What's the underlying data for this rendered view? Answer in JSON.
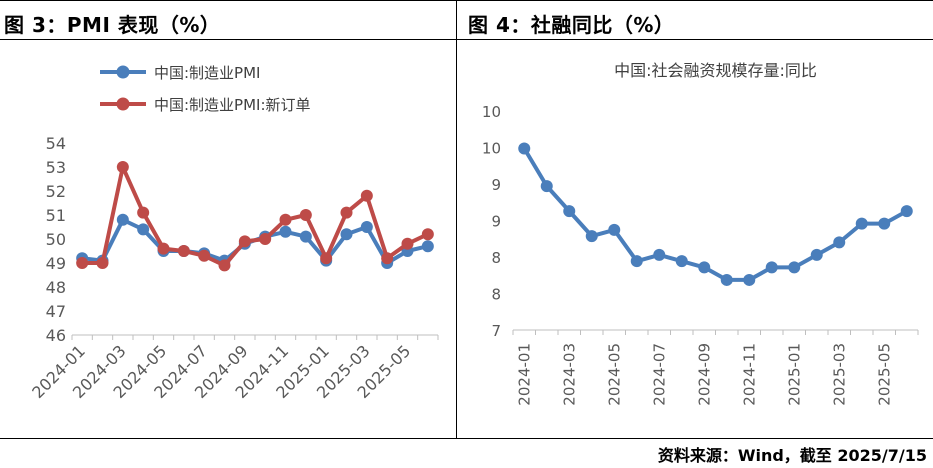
{
  "header": {
    "left_title": "图 3：PMI 表现（%）",
    "right_title": "图 4：社融同比（%）"
  },
  "footer": {
    "source": "资料来源：Wind，截至 2025/7/15"
  },
  "colors": {
    "blue": "#4a7ebb",
    "red": "#be4b48",
    "axis": "#bfbfbf"
  },
  "chart_data": [
    {
      "type": "line",
      "title": "",
      "categories": [
        "2024-01",
        "2024-02",
        "2024-03",
        "2024-04",
        "2024-05",
        "2024-06",
        "2024-07",
        "2024-08",
        "2024-09",
        "2024-10",
        "2024-11",
        "2024-12",
        "2025-01",
        "2025-02",
        "2025-03",
        "2025-04",
        "2025-05",
        "2025-06"
      ],
      "x_tick_labels": [
        "2024-01",
        "2024-03",
        "2024-05",
        "2024-07",
        "2024-09",
        "2024-11",
        "2025-01",
        "2025-03",
        "2025-05"
      ],
      "y_tick_labels": [
        "46",
        "47",
        "48",
        "49",
        "50",
        "51",
        "52",
        "53",
        "54"
      ],
      "ylim": [
        46,
        54
      ],
      "grid": false,
      "legend_position": "top",
      "series": [
        {
          "name": "中国:制造业PMI",
          "color": "#4a7ebb",
          "values": [
            49.2,
            49.1,
            50.8,
            50.4,
            49.5,
            49.5,
            49.4,
            49.1,
            49.8,
            50.1,
            50.3,
            50.1,
            49.1,
            50.2,
            50.5,
            49.0,
            49.5,
            49.7
          ]
        },
        {
          "name": "中国:制造业PMI:新订单",
          "color": "#be4b48",
          "values": [
            49.0,
            49.0,
            53.0,
            51.1,
            49.6,
            49.5,
            49.3,
            48.9,
            49.9,
            50.0,
            50.8,
            51.0,
            49.2,
            51.1,
            51.8,
            49.2,
            49.8,
            50.2
          ]
        }
      ]
    },
    {
      "type": "line",
      "title": "中国:社会融资规模存量:同比",
      "categories": [
        "2024-01",
        "2024-02",
        "2024-03",
        "2024-04",
        "2024-05",
        "2024-06",
        "2024-07",
        "2024-08",
        "2024-09",
        "2024-10",
        "2024-11",
        "2024-12",
        "2025-01",
        "2025-02",
        "2025-03",
        "2025-04",
        "2025-05",
        "2025-06"
      ],
      "x_tick_labels": [
        "2024-01",
        "2024-03",
        "2024-05",
        "2024-07",
        "2024-09",
        "2024-11",
        "2025-01",
        "2025-03",
        "2025-05"
      ],
      "y_tick_labels": [
        "7",
        "8",
        "8",
        "9",
        "9",
        "10",
        "10"
      ],
      "ylim": [
        7,
        10.5
      ],
      "grid": false,
      "legend_position": "none",
      "series": [
        {
          "name": "中国:社会融资规模存量:同比",
          "color": "#4a7ebb",
          "values": [
            9.9,
            9.3,
            8.9,
            8.5,
            8.6,
            8.1,
            8.2,
            8.1,
            8.0,
            7.8,
            7.8,
            8.0,
            8.0,
            8.2,
            8.4,
            8.7,
            8.7,
            8.9
          ]
        }
      ]
    }
  ]
}
